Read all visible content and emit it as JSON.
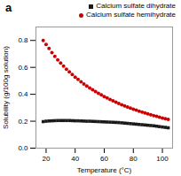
{
  "chart_data": {
    "type": "scatter",
    "title": "a",
    "xlabel": "Temperature (°C)",
    "ylabel": "Solubility (g/100g solution)",
    "xlim": [
      13,
      107
    ],
    "ylim": [
      0.0,
      0.9
    ],
    "xticks": [
      20,
      40,
      60,
      80,
      100
    ],
    "yticks": [
      {
        "value": 0.0,
        "label": "0.0"
      },
      0.2,
      0.4,
      0.6,
      0.8
    ],
    "legend": "upper right",
    "series": [
      {
        "name": "Calcium sulfate dihydrate",
        "color": "#1a1a1a",
        "marker": "square",
        "x": [
          18,
          20,
          22,
          24,
          26,
          28,
          30,
          32,
          34,
          36,
          38,
          40,
          42,
          44,
          46,
          48,
          50,
          52,
          54,
          56,
          58,
          60,
          62,
          64,
          66,
          68,
          70,
          72,
          74,
          76,
          78,
          80,
          82,
          84,
          86,
          88,
          90,
          92,
          94,
          96,
          98,
          100,
          102,
          104
        ],
        "values": [
          0.197,
          0.2,
          0.202,
          0.203,
          0.204,
          0.205,
          0.205,
          0.205,
          0.205,
          0.205,
          0.204,
          0.203,
          0.203,
          0.202,
          0.201,
          0.2,
          0.2,
          0.199,
          0.198,
          0.197,
          0.196,
          0.195,
          0.194,
          0.193,
          0.192,
          0.191,
          0.19,
          0.188,
          0.186,
          0.184,
          0.182,
          0.18,
          0.178,
          0.176,
          0.174,
          0.172,
          0.17,
          0.168,
          0.166,
          0.163,
          0.16,
          0.157,
          0.154,
          0.151
        ]
      },
      {
        "name": "Calcium sulfate hemihydrate",
        "color": "#cc0000",
        "marker": "circle",
        "x": [
          18,
          20,
          22,
          24,
          26,
          28,
          30,
          32,
          34,
          36,
          38,
          40,
          42,
          44,
          46,
          48,
          50,
          52,
          54,
          56,
          58,
          60,
          62,
          64,
          66,
          68,
          70,
          72,
          74,
          76,
          78,
          80,
          82,
          84,
          86,
          88,
          90,
          92,
          94,
          96,
          98,
          100,
          102,
          104
        ],
        "values": [
          0.8,
          0.77,
          0.74,
          0.71,
          0.682,
          0.656,
          0.632,
          0.609,
          0.587,
          0.567,
          0.547,
          0.528,
          0.51,
          0.493,
          0.477,
          0.462,
          0.447,
          0.433,
          0.42,
          0.407,
          0.395,
          0.383,
          0.372,
          0.361,
          0.351,
          0.341,
          0.331,
          0.322,
          0.313,
          0.305,
          0.297,
          0.289,
          0.282,
          0.275,
          0.268,
          0.261,
          0.255,
          0.248,
          0.242,
          0.236,
          0.23,
          0.224,
          0.219,
          0.214
        ]
      }
    ]
  }
}
